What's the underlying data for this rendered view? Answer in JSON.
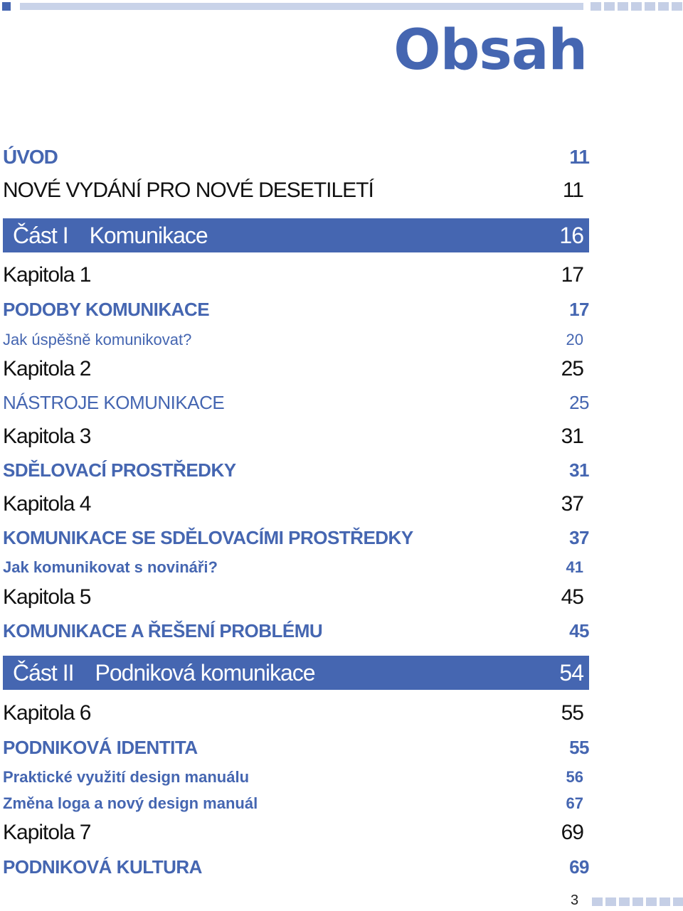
{
  "title": "Obsah",
  "page_number": "3",
  "entries": [
    {
      "title": "ÚVOD",
      "page": "11"
    },
    {
      "title": "NOVÉ VYDÁNÍ PRO NOVÉ DESETILETÍ",
      "page": "11"
    },
    {
      "part_num": "Část I",
      "title": "Komunikace",
      "page": "16"
    },
    {
      "title": "Kapitola 1",
      "page": "17"
    },
    {
      "title": "PODOBY KOMUNIKACE",
      "page": "17"
    },
    {
      "title": "Jak úspěšně komunikovat?",
      "page": "20"
    },
    {
      "title": "Kapitola 2",
      "page": "25"
    },
    {
      "title": "NÁSTROJE KOMUNIKACE",
      "page": "25"
    },
    {
      "title": "Kapitola 3",
      "page": "31"
    },
    {
      "title": "SDĚLOVACÍ PROSTŘEDKY",
      "page": "31"
    },
    {
      "title": "Kapitola 4",
      "page": "37"
    },
    {
      "title": "KOMUNIKACE SE SDĚLOVACÍMI PROSTŘEDKY",
      "page": "37"
    },
    {
      "title": "Jak komunikovat s novináři?",
      "page": "41"
    },
    {
      "title": "Kapitola 5",
      "page": "45"
    },
    {
      "title": "KOMUNIKACE A ŘEŠENÍ PROBLÉMU",
      "page": "45"
    },
    {
      "part_num": "Část II",
      "title": "Podniková komunikace",
      "page": "54"
    },
    {
      "title": "Kapitola 6",
      "page": "55"
    },
    {
      "title": "PODNIKOVÁ IDENTITA",
      "page": "55"
    },
    {
      "title": "Praktické využití design manuálu",
      "page": "56"
    },
    {
      "title": "Změna loga a nový design manuál",
      "page": "67"
    },
    {
      "title": "Kapitola 7",
      "page": "69"
    },
    {
      "title": "PODNIKOVÁ KULTURA",
      "page": "69"
    }
  ]
}
